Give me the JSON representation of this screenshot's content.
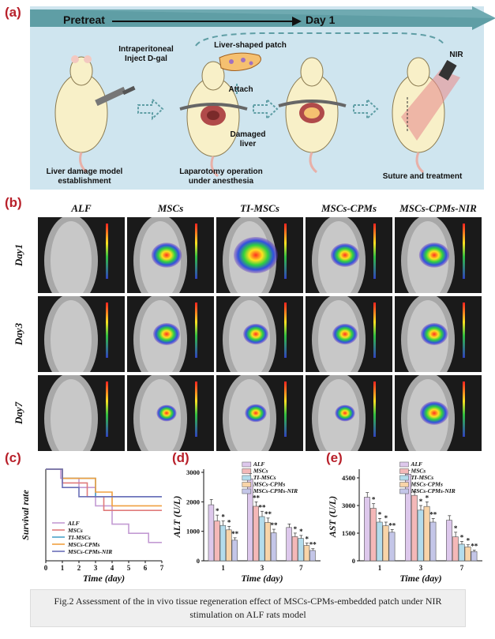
{
  "panel_a": {
    "label": "(a)",
    "banner_left": "Pretreat",
    "banner_right": "Day 1",
    "step1_callout_line1": "Intraperitoneal",
    "step1_callout_line2": "Inject D-gal",
    "patch_label": "Liver-shaped patch",
    "attach_label": "Attach",
    "damaged_line1": "Damaged",
    "damaged_line2": "liver",
    "nir_label": "NIR",
    "caption1_line1": "Liver damage model",
    "caption1_line2": "establishment",
    "caption2_line1": "Laparotomy operation",
    "caption2_line2": "under anesthesia",
    "caption3": "Suture and treatment",
    "colors": {
      "banner": "#5f9ea5",
      "background": "#cfe5ef",
      "rat": "#f8f0c8",
      "tissue": "#b04a4a"
    }
  },
  "panel_b": {
    "label": "(b)",
    "columns": [
      "ALF",
      "MSCs",
      "TI-MSCs",
      "MSCs-CPMs",
      "MSCs-CPMs-NIR"
    ],
    "rows": [
      "Day1",
      "Day3",
      "Day7"
    ],
    "signal_levels": [
      [
        0,
        0.6,
        1.0,
        0.55,
        0.6
      ],
      [
        0,
        0.5,
        0.45,
        0.45,
        0.5
      ],
      [
        0,
        0.3,
        0.35,
        0.3,
        0.55
      ]
    ]
  },
  "chart_data": [
    {
      "type": "line",
      "panel_label": "(c)",
      "xlabel": "Time (day)",
      "ylabel": "Survival rate",
      "x_ticks": [
        "0",
        "1",
        "2",
        "3",
        "4",
        "5",
        "6",
        "7"
      ],
      "xlim": [
        0,
        7
      ],
      "ylim": [
        0,
        1
      ],
      "legend": "bottom-left",
      "series": [
        {
          "name": "ALF",
          "color": "#c39bd3",
          "x": [
            0,
            0.9,
            0.9,
            2,
            2,
            3,
            3,
            4,
            4,
            5,
            5,
            6.2,
            6.2,
            7
          ],
          "y": [
            1,
            1,
            0.9,
            0.9,
            0.8,
            0.8,
            0.6,
            0.6,
            0.4,
            0.4,
            0.3,
            0.3,
            0.2,
            0.2
          ]
        },
        {
          "name": "MSCs",
          "color": "#e07b7b",
          "x": [
            0,
            1,
            1,
            2.5,
            2.5,
            3.5,
            3.5,
            7
          ],
          "y": [
            1,
            1,
            0.85,
            0.85,
            0.7,
            0.7,
            0.55,
            0.55
          ]
        },
        {
          "name": "TI-MSCs",
          "color": "#4aa3c9",
          "x": [
            0,
            1,
            1,
            3,
            3,
            7
          ],
          "y": [
            1,
            1,
            0.9,
            0.9,
            0.7,
            0.7
          ]
        },
        {
          "name": "MSCs-CPMs",
          "color": "#f0a040",
          "x": [
            0,
            1,
            1,
            3,
            3,
            4,
            4,
            7
          ],
          "y": [
            1,
            1,
            0.9,
            0.9,
            0.75,
            0.75,
            0.6,
            0.6
          ]
        },
        {
          "name": "MSCs-CPMs-NIR",
          "color": "#6b6fb8",
          "x": [
            0,
            1,
            1,
            2,
            2,
            7
          ],
          "y": [
            1,
            1,
            0.8,
            0.8,
            0.7,
            0.7
          ]
        }
      ]
    },
    {
      "type": "bar",
      "panel_label": "(d)",
      "xlabel": "Time (day)",
      "ylabel": "ALT (U/L)",
      "categories": [
        "1",
        "3",
        "7"
      ],
      "ylim": [
        0,
        3000
      ],
      "y_ticks": [
        "0",
        "1000",
        "2000",
        "3000"
      ],
      "legend": "top-right",
      "series": [
        {
          "name": "ALF",
          "color": "#ddc8ec",
          "values": [
            1900,
            2780,
            1130
          ],
          "errors": [
            180,
            180,
            120
          ],
          "sig": [
            "",
            "",
            ""
          ]
        },
        {
          "name": "MSCs",
          "color": "#f4b8b8",
          "values": [
            1350,
            1850,
            820
          ],
          "errors": [
            200,
            150,
            120
          ],
          "sig": [
            "*",
            "**",
            "*"
          ]
        },
        {
          "name": "TI-MSCs",
          "color": "#b3dcec",
          "values": [
            1200,
            1500,
            760
          ],
          "errors": [
            150,
            180,
            100
          ],
          "sig": [
            "*",
            "**",
            "*"
          ]
        },
        {
          "name": "MSCs-CPMs",
          "color": "#f8d4a8",
          "values": [
            1050,
            1300,
            520
          ],
          "errors": [
            120,
            150,
            80
          ],
          "sig": [
            "*",
            "**",
            "*"
          ]
        },
        {
          "name": "MSCs-CPMs-NIR",
          "color": "#c4c6e8",
          "values": [
            700,
            950,
            350
          ],
          "errors": [
            80,
            120,
            60
          ],
          "sig": [
            "**",
            "**",
            "**"
          ]
        }
      ]
    },
    {
      "type": "bar",
      "panel_label": "(e)",
      "xlabel": "Time (day)",
      "ylabel": "AST (U/L)",
      "categories": [
        "1",
        "3",
        "7"
      ],
      "ylim": [
        0,
        4800
      ],
      "y_ticks": [
        "0",
        "1500",
        "3000",
        "4500"
      ],
      "legend": "top-right",
      "series": [
        {
          "name": "ALF",
          "color": "#ddc8ec",
          "values": [
            3450,
            4700,
            2200
          ],
          "errors": [
            250,
            200,
            250
          ],
          "sig": [
            "",
            "",
            ""
          ]
        },
        {
          "name": "MSCs",
          "color": "#f4b8b8",
          "values": [
            2850,
            3550,
            1300
          ],
          "errors": [
            250,
            200,
            250
          ],
          "sig": [
            "*",
            "",
            "*"
          ]
        },
        {
          "name": "TI-MSCs",
          "color": "#b3dcec",
          "values": [
            2100,
            2750,
            900
          ],
          "errors": [
            200,
            250,
            150
          ],
          "sig": [
            "*",
            "*",
            "*"
          ]
        },
        {
          "name": "MSCs-CPMs",
          "color": "#f8d4a8",
          "values": [
            1900,
            2950,
            750
          ],
          "errors": [
            200,
            250,
            120
          ],
          "sig": [
            "*",
            "*",
            "*"
          ]
        },
        {
          "name": "MSCs-CPMs-NIR",
          "color": "#c4c6e8",
          "values": [
            1550,
            2100,
            500
          ],
          "errors": [
            150,
            200,
            80
          ],
          "sig": [
            "**",
            "**",
            "**"
          ]
        }
      ]
    }
  ],
  "caption": {
    "line1": "Fig.2 Assessment of the in vivo tissue regeneration effect of MSCs-CPMs-embedded patch under NIR",
    "line2": "stimulation on ALF rats model"
  }
}
